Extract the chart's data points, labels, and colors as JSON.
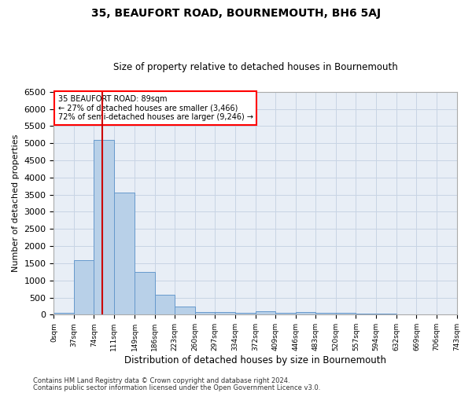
{
  "title": "35, BEAUFORT ROAD, BOURNEMOUTH, BH6 5AJ",
  "subtitle": "Size of property relative to detached houses in Bournemouth",
  "xlabel": "Distribution of detached houses by size in Bournemouth",
  "ylabel": "Number of detached properties",
  "footer_line1": "Contains HM Land Registry data © Crown copyright and database right 2024.",
  "footer_line2": "Contains public sector information licensed under the Open Government Licence v3.0.",
  "annotation_line1": "35 BEAUFORT ROAD: 89sqm",
  "annotation_line2": "← 27% of detached houses are smaller (3,466)",
  "annotation_line3": "72% of semi-detached houses are larger (9,246) →",
  "property_size": 89,
  "bin_edges": [
    0,
    37,
    74,
    111,
    149,
    186,
    223,
    260,
    297,
    334,
    372,
    409,
    446,
    483,
    520,
    557,
    594,
    632,
    669,
    706,
    743
  ],
  "bar_heights": [
    50,
    1600,
    5100,
    3550,
    1250,
    580,
    230,
    80,
    70,
    50,
    100,
    60,
    75,
    50,
    50,
    30,
    30,
    15,
    8,
    3
  ],
  "bar_color": "#b8d0e8",
  "bar_edge_color": "#6699cc",
  "red_line_color": "#cc0000",
  "grid_color": "#c8d4e4",
  "background_color": "#e8eef6",
  "plot_bg_color": "#e8eef6",
  "ylim": [
    0,
    6500
  ],
  "yticks": [
    0,
    500,
    1000,
    1500,
    2000,
    2500,
    3000,
    3500,
    4000,
    4500,
    5000,
    5500,
    6000,
    6500
  ],
  "title_fontsize": 10,
  "subtitle_fontsize": 8.5,
  "ylabel_fontsize": 8,
  "xlabel_fontsize": 8.5,
  "ytick_fontsize": 8,
  "xtick_fontsize": 6.5,
  "annotation_fontsize": 7,
  "footer_fontsize": 6
}
